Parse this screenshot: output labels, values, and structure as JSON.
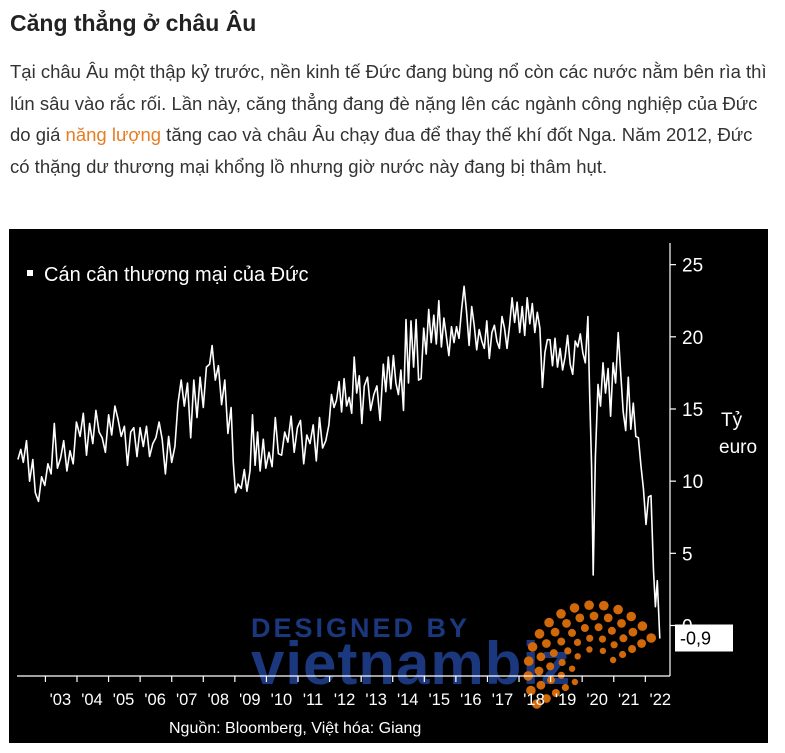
{
  "article": {
    "heading": "Căng thẳng ở châu Âu",
    "para_before_link": "Tại châu Âu một thập kỷ trước, nền kinh tế Đức đang bùng nổ còn các nước nằm bên rìa thì lún sâu vào rắc rối. Lần này, căng thẳng đang đè nặng lên các ngành công nghiệp của Đức do giá ",
    "link_text": "năng lượng",
    "para_after_link": " tăng cao và châu Âu chạy đua để thay thế khí đốt Nga. Năm 2012, Đức có thặng dư thương mại khổng lồ nhưng giờ nước này đang bị thâm hụt.",
    "link_color": "#e67e22"
  },
  "chart_data": {
    "type": "line",
    "series_label": "Cán cân thương mại của Đức",
    "ylabel_line1": "Tỷ",
    "ylabel_line2": "euro",
    "ylim": [
      -3.5,
      26.5
    ],
    "yticks": [
      0,
      5,
      10,
      15,
      20,
      25
    ],
    "xlim": [
      2002.1,
      2022.75
    ],
    "xticks": [
      {
        "year": 2003,
        "label": "'03"
      },
      {
        "year": 2004,
        "label": "'04"
      },
      {
        "year": 2005,
        "label": "'05"
      },
      {
        "year": 2006,
        "label": "'06"
      },
      {
        "year": 2007,
        "label": "'07"
      },
      {
        "year": 2008,
        "label": "'08"
      },
      {
        "year": 2009,
        "label": "'09"
      },
      {
        "year": 2010,
        "label": "'10"
      },
      {
        "year": 2011,
        "label": "'11"
      },
      {
        "year": 2012,
        "label": "'12"
      },
      {
        "year": 2013,
        "label": "'13"
      },
      {
        "year": 2014,
        "label": "'14"
      },
      {
        "year": 2015,
        "label": "'15"
      },
      {
        "year": 2016,
        "label": "'16"
      },
      {
        "year": 2017,
        "label": "'17"
      },
      {
        "year": 2018,
        "label": "'18"
      },
      {
        "year": 2019,
        "label": "'19"
      },
      {
        "year": 2020,
        "label": "'20"
      },
      {
        "year": 2021,
        "label": "'21"
      },
      {
        "year": 2022,
        "label": "'22"
      }
    ],
    "last_value_label": "-0,9",
    "source": "Nguồn: Bloomberg, Việt hóa: Giang",
    "line_color": "#ffffff",
    "background": "#000000",
    "points": [
      [
        2002.13,
        11.5
      ],
      [
        2002.22,
        12.2
      ],
      [
        2002.3,
        11.3
      ],
      [
        2002.4,
        12.8
      ],
      [
        2002.5,
        10.0
      ],
      [
        2002.6,
        11.5
      ],
      [
        2002.68,
        9.2
      ],
      [
        2002.78,
        8.6
      ],
      [
        2002.88,
        10.3
      ],
      [
        2002.98,
        9.7
      ],
      [
        2003.08,
        11.2
      ],
      [
        2003.18,
        10.5
      ],
      [
        2003.28,
        14.0
      ],
      [
        2003.38,
        10.9
      ],
      [
        2003.48,
        11.6
      ],
      [
        2003.58,
        12.8
      ],
      [
        2003.68,
        10.7
      ],
      [
        2003.78,
        12.1
      ],
      [
        2003.88,
        11.2
      ],
      [
        2003.98,
        14.1
      ],
      [
        2004.1,
        13.1
      ],
      [
        2004.2,
        14.7
      ],
      [
        2004.3,
        11.8
      ],
      [
        2004.4,
        14.0
      ],
      [
        2004.5,
        12.6
      ],
      [
        2004.6,
        14.9
      ],
      [
        2004.7,
        13.4
      ],
      [
        2004.8,
        13.0
      ],
      [
        2004.9,
        12.0
      ],
      [
        2005.0,
        14.6
      ],
      [
        2005.1,
        13.2
      ],
      [
        2005.2,
        15.2
      ],
      [
        2005.3,
        14.3
      ],
      [
        2005.4,
        13.1
      ],
      [
        2005.5,
        13.8
      ],
      [
        2005.6,
        11.1
      ],
      [
        2005.7,
        13.4
      ],
      [
        2005.8,
        13.7
      ],
      [
        2005.9,
        11.7
      ],
      [
        2006.0,
        13.7
      ],
      [
        2006.1,
        12.4
      ],
      [
        2006.2,
        13.8
      ],
      [
        2006.3,
        11.7
      ],
      [
        2006.4,
        12.6
      ],
      [
        2006.5,
        13.0
      ],
      [
        2006.6,
        14.1
      ],
      [
        2006.7,
        12.9
      ],
      [
        2006.8,
        10.5
      ],
      [
        2006.9,
        13.1
      ],
      [
        2007.0,
        11.3
      ],
      [
        2007.1,
        12.4
      ],
      [
        2007.2,
        15.4
      ],
      [
        2007.3,
        17.0
      ],
      [
        2007.4,
        15.2
      ],
      [
        2007.5,
        16.8
      ],
      [
        2007.6,
        13.0
      ],
      [
        2007.7,
        17.0
      ],
      [
        2007.8,
        14.4
      ],
      [
        2007.9,
        17.2
      ],
      [
        2008.0,
        15.1
      ],
      [
        2008.1,
        17.9
      ],
      [
        2008.2,
        18.1
      ],
      [
        2008.28,
        19.4
      ],
      [
        2008.38,
        17.0
      ],
      [
        2008.48,
        18.0
      ],
      [
        2008.58,
        15.3
      ],
      [
        2008.68,
        17.0
      ],
      [
        2008.78,
        13.3
      ],
      [
        2008.88,
        15.1
      ],
      [
        2008.95,
        11.3
      ],
      [
        2009.02,
        9.2
      ],
      [
        2009.1,
        9.8
      ],
      [
        2009.2,
        9.5
      ],
      [
        2009.3,
        10.8
      ],
      [
        2009.38,
        9.3
      ],
      [
        2009.48,
        10.7
      ],
      [
        2009.56,
        14.6
      ],
      [
        2009.64,
        11.1
      ],
      [
        2009.72,
        13.4
      ],
      [
        2009.8,
        10.7
      ],
      [
        2009.9,
        12.9
      ],
      [
        2009.98,
        10.9
      ],
      [
        2010.08,
        12.0
      ],
      [
        2010.18,
        11.0
      ],
      [
        2010.28,
        14.4
      ],
      [
        2010.38,
        11.9
      ],
      [
        2010.48,
        11.8
      ],
      [
        2010.58,
        13.4
      ],
      [
        2010.68,
        12.7
      ],
      [
        2010.78,
        14.5
      ],
      [
        2010.88,
        12.0
      ],
      [
        2010.98,
        13.7
      ],
      [
        2011.08,
        14.2
      ],
      [
        2011.18,
        11.2
      ],
      [
        2011.28,
        13.2
      ],
      [
        2011.38,
        12.6
      ],
      [
        2011.48,
        13.9
      ],
      [
        2011.58,
        11.4
      ],
      [
        2011.68,
        14.4
      ],
      [
        2011.78,
        12.3
      ],
      [
        2011.88,
        12.8
      ],
      [
        2011.98,
        13.9
      ],
      [
        2012.06,
        16.0
      ],
      [
        2012.14,
        15.1
      ],
      [
        2012.22,
        15.6
      ],
      [
        2012.3,
        16.9
      ],
      [
        2012.38,
        14.8
      ],
      [
        2012.46,
        17.1
      ],
      [
        2012.54,
        15.2
      ],
      [
        2012.62,
        15.8
      ],
      [
        2012.7,
        14.7
      ],
      [
        2012.78,
        18.6
      ],
      [
        2012.86,
        16.1
      ],
      [
        2012.94,
        17.3
      ],
      [
        2013.02,
        14.0
      ],
      [
        2013.1,
        16.6
      ],
      [
        2013.2,
        17.2
      ],
      [
        2013.3,
        14.9
      ],
      [
        2013.4,
        16.0
      ],
      [
        2013.5,
        16.6
      ],
      [
        2013.6,
        14.2
      ],
      [
        2013.7,
        18.1
      ],
      [
        2013.78,
        16.2
      ],
      [
        2013.86,
        18.6
      ],
      [
        2013.94,
        16.4
      ],
      [
        2014.02,
        18.7
      ],
      [
        2014.1,
        16.8
      ],
      [
        2014.18,
        16.0
      ],
      [
        2014.26,
        17.7
      ],
      [
        2014.34,
        14.9
      ],
      [
        2014.42,
        21.2
      ],
      [
        2014.5,
        16.8
      ],
      [
        2014.58,
        21.1
      ],
      [
        2014.66,
        17.9
      ],
      [
        2014.74,
        21.2
      ],
      [
        2014.82,
        17.0
      ],
      [
        2014.9,
        17.1
      ],
      [
        2014.98,
        20.6
      ],
      [
        2015.06,
        18.8
      ],
      [
        2015.14,
        21.9
      ],
      [
        2015.22,
        19.6
      ],
      [
        2015.3,
        21.5
      ],
      [
        2015.38,
        19.5
      ],
      [
        2015.46,
        22.5
      ],
      [
        2015.54,
        19.3
      ],
      [
        2015.62,
        21.3
      ],
      [
        2015.7,
        20.0
      ],
      [
        2015.78,
        18.7
      ],
      [
        2015.86,
        20.7
      ],
      [
        2015.94,
        19.6
      ],
      [
        2016.02,
        20.7
      ],
      [
        2016.1,
        19.9
      ],
      [
        2016.18,
        21.9
      ],
      [
        2016.26,
        23.5
      ],
      [
        2016.34,
        21.7
      ],
      [
        2016.42,
        19.4
      ],
      [
        2016.5,
        22.1
      ],
      [
        2016.58,
        20.8
      ],
      [
        2016.66,
        19.1
      ],
      [
        2016.74,
        20.5
      ],
      [
        2016.82,
        19.7
      ],
      [
        2016.9,
        19.2
      ],
      [
        2016.98,
        21.1
      ],
      [
        2017.06,
        18.5
      ],
      [
        2017.14,
        20.3
      ],
      [
        2017.22,
        20.8
      ],
      [
        2017.3,
        19.7
      ],
      [
        2017.38,
        19.2
      ],
      [
        2017.46,
        21.4
      ],
      [
        2017.54,
        20.6
      ],
      [
        2017.62,
        19.2
      ],
      [
        2017.7,
        20.8
      ],
      [
        2017.78,
        22.7
      ],
      [
        2017.86,
        21.0
      ],
      [
        2017.94,
        22.4
      ],
      [
        2018.02,
        20.3
      ],
      [
        2018.1,
        22.1
      ],
      [
        2018.18,
        20.1
      ],
      [
        2018.26,
        22.7
      ],
      [
        2018.34,
        20.9
      ],
      [
        2018.42,
        22.3
      ],
      [
        2018.5,
        20.3
      ],
      [
        2018.58,
        21.7
      ],
      [
        2018.66,
        20.6
      ],
      [
        2018.74,
        16.5
      ],
      [
        2018.82,
        18.9
      ],
      [
        2018.9,
        19.8
      ],
      [
        2018.98,
        19.8
      ],
      [
        2019.06,
        18.0
      ],
      [
        2019.14,
        19.9
      ],
      [
        2019.22,
        17.9
      ],
      [
        2019.3,
        19.2
      ],
      [
        2019.38,
        17.7
      ],
      [
        2019.46,
        18.6
      ],
      [
        2019.54,
        20.1
      ],
      [
        2019.62,
        18.1
      ],
      [
        2019.7,
        17.4
      ],
      [
        2019.78,
        19.7
      ],
      [
        2019.86,
        19.3
      ],
      [
        2019.94,
        20.2
      ],
      [
        2020.02,
        18.9
      ],
      [
        2020.1,
        18.2
      ],
      [
        2020.18,
        21.4
      ],
      [
        2020.24,
        15.9
      ],
      [
        2020.3,
        11.0
      ],
      [
        2020.35,
        3.5
      ],
      [
        2020.42,
        11.7
      ],
      [
        2020.5,
        16.7
      ],
      [
        2020.58,
        15.2
      ],
      [
        2020.66,
        18.2
      ],
      [
        2020.74,
        16.1
      ],
      [
        2020.82,
        17.8
      ],
      [
        2020.9,
        14.5
      ],
      [
        2020.98,
        18.2
      ],
      [
        2021.06,
        16.8
      ],
      [
        2021.14,
        20.3
      ],
      [
        2021.22,
        17.5
      ],
      [
        2021.3,
        14.8
      ],
      [
        2021.38,
        13.5
      ],
      [
        2021.46,
        17.2
      ],
      [
        2021.54,
        13.6
      ],
      [
        2021.62,
        15.4
      ],
      [
        2021.7,
        13.1
      ],
      [
        2021.78,
        13.0
      ],
      [
        2021.86,
        11.1
      ],
      [
        2021.94,
        9.5
      ],
      [
        2022.02,
        7.0
      ],
      [
        2022.1,
        8.9
      ],
      [
        2022.18,
        9.0
      ],
      [
        2022.26,
        3.8
      ],
      [
        2022.32,
        1.3
      ],
      [
        2022.38,
        3.1
      ],
      [
        2022.46,
        -0.9
      ]
    ]
  },
  "watermark": {
    "line1": "DESIGNED BY",
    "line2": "vietnambiz"
  }
}
